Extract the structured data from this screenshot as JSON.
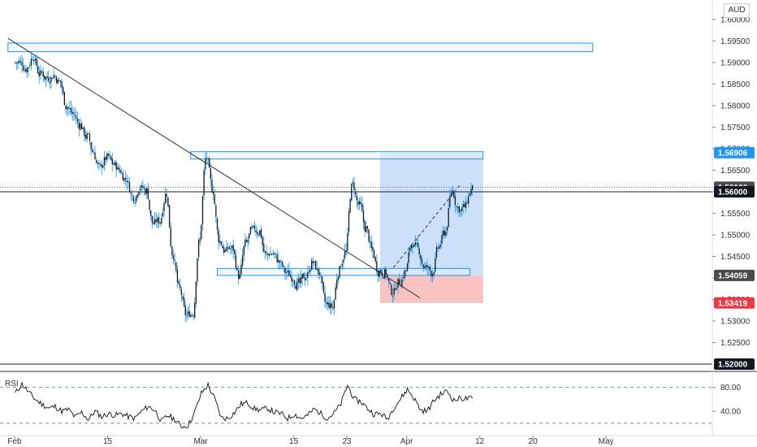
{
  "currency": "AUD",
  "rsi_label": "RSI",
  "colors": {
    "candle": "#1a1a1a",
    "wick": "#2196f3",
    "trendline": "#333333",
    "zone_border": "#2196f3",
    "zone_fill": "#e3f0fd",
    "profit_fill": "#bbd6f7",
    "stop_fill": "#f8b9b9",
    "tag_blue": "#2196f3",
    "tag_red": "#f23645",
    "tag_dark": "#131722",
    "tag_grey": "#4a4a4a",
    "rsi_line": "#111111",
    "rsi_band": "#5b9bd5"
  },
  "chart_data": {
    "type": "candlestick",
    "symbol_currency": "AUD",
    "y_range": [
      1.5185,
      1.6045
    ],
    "x_range": [
      -2.2,
      105
    ],
    "y_ticks": [
      "1.52500",
      "1.53000",
      "1.53500",
      "1.54000",
      "1.54500",
      "1.55000",
      "1.55500",
      "1.56000",
      "1.56500",
      "1.57000",
      "1.57500",
      "1.58000",
      "1.58500",
      "1.59000",
      "1.59500",
      "1.60000"
    ],
    "x_ticks": [
      {
        "label": "Feb",
        "x": 0
      },
      {
        "label": "15",
        "x": 14
      },
      {
        "label": "Mar",
        "x": 28
      },
      {
        "label": "15",
        "x": 42
      },
      {
        "label": "23",
        "x": 50
      },
      {
        "label": "Apr",
        "x": 59
      },
      {
        "label": "12",
        "x": 70
      },
      {
        "label": "20",
        "x": 78
      },
      {
        "label": "May",
        "x": 89
      }
    ],
    "price_tags": [
      {
        "label": "1.56906",
        "y": 1.56906,
        "style": "blue"
      },
      {
        "label": "1.56106",
        "y": 1.56106,
        "style": "grey"
      },
      {
        "label": "1.56000",
        "y": 1.56,
        "style": "dark"
      },
      {
        "label": "1.54059",
        "y": 1.54059,
        "style": "grey"
      },
      {
        "label": "1.53419",
        "y": 1.53419,
        "style": "red"
      },
      {
        "label": "1.52000",
        "y": 1.52,
        "style": "dark"
      }
    ],
    "horizontal_lines": [
      {
        "y": 1.56,
        "style": "solid"
      },
      {
        "y": 1.56106,
        "style": "dotted"
      },
      {
        "y": 1.52,
        "style": "solid"
      }
    ],
    "zones": [
      {
        "x0": -1,
        "x1": 87,
        "y0": 1.5925,
        "y1": 1.5945
      },
      {
        "x0": 26.5,
        "x1": 70.5,
        "y0": 1.5676,
        "y1": 1.5693
      },
      {
        "x0": 30.5,
        "x1": 68.5,
        "y0": 1.5406,
        "y1": 1.5422
      }
    ],
    "position": {
      "x0": 55,
      "x1": 70.5,
      "entry": 1.54059,
      "target": 1.56906,
      "stop": 1.53419
    },
    "trendline": {
      "x0": -1,
      "y0": 1.5956,
      "x1": 61,
      "y1": 1.5354
    },
    "projection": {
      "x0": 57,
      "y0": 1.5424,
      "x1": 67,
      "y1": 1.5615
    },
    "candles_per_day": 5,
    "closes": [
      1.59,
      1.5886,
      1.5915,
      1.5872,
      1.5865,
      1.587,
      1.5855,
      1.5798,
      1.578,
      1.5755,
      1.5728,
      1.5692,
      1.5655,
      1.5678,
      1.5664,
      1.565,
      1.563,
      1.5588,
      1.5612,
      1.5602,
      1.5526,
      1.5532,
      1.5598,
      1.5454,
      1.5372,
      1.5312,
      1.5318,
      1.5488,
      1.5682,
      1.5602,
      1.5485,
      1.5462,
      1.5468,
      1.5402,
      1.5481,
      1.5511,
      1.5508,
      1.5452,
      1.5457,
      1.5437,
      1.5412,
      1.5402,
      1.5387,
      1.5402,
      1.5436,
      1.5412,
      1.5338,
      1.5332,
      1.5417,
      1.5461,
      1.5617,
      1.5568,
      1.5514,
      1.5462,
      1.5415,
      1.5413,
      1.5366,
      1.5392,
      1.5416,
      1.5481,
      1.5464,
      1.5423,
      1.5412,
      1.5472,
      1.5507,
      1.5602,
      1.5562,
      1.5565,
      1.5606
    ],
    "rsi": {
      "y_range": [
        10,
        100
      ],
      "y_ticks": [
        "80.00",
        "40.00"
      ],
      "bands": [
        80,
        20
      ],
      "values": [
        70,
        86,
        72,
        60,
        52,
        45,
        48,
        40,
        43,
        30,
        38,
        26,
        40,
        31,
        36,
        33,
        36,
        31,
        28,
        40,
        48,
        42,
        23,
        33,
        26,
        14,
        16,
        38,
        70,
        84,
        61,
        29,
        28,
        38,
        52,
        54,
        44,
        42,
        45,
        38,
        36,
        28,
        35,
        28,
        33,
        44,
        36,
        28,
        37,
        52,
        84,
        60,
        56,
        45,
        35,
        36,
        27,
        47,
        61,
        77,
        62,
        42,
        40,
        58,
        68,
        74,
        58,
        62,
        61
      ]
    }
  }
}
